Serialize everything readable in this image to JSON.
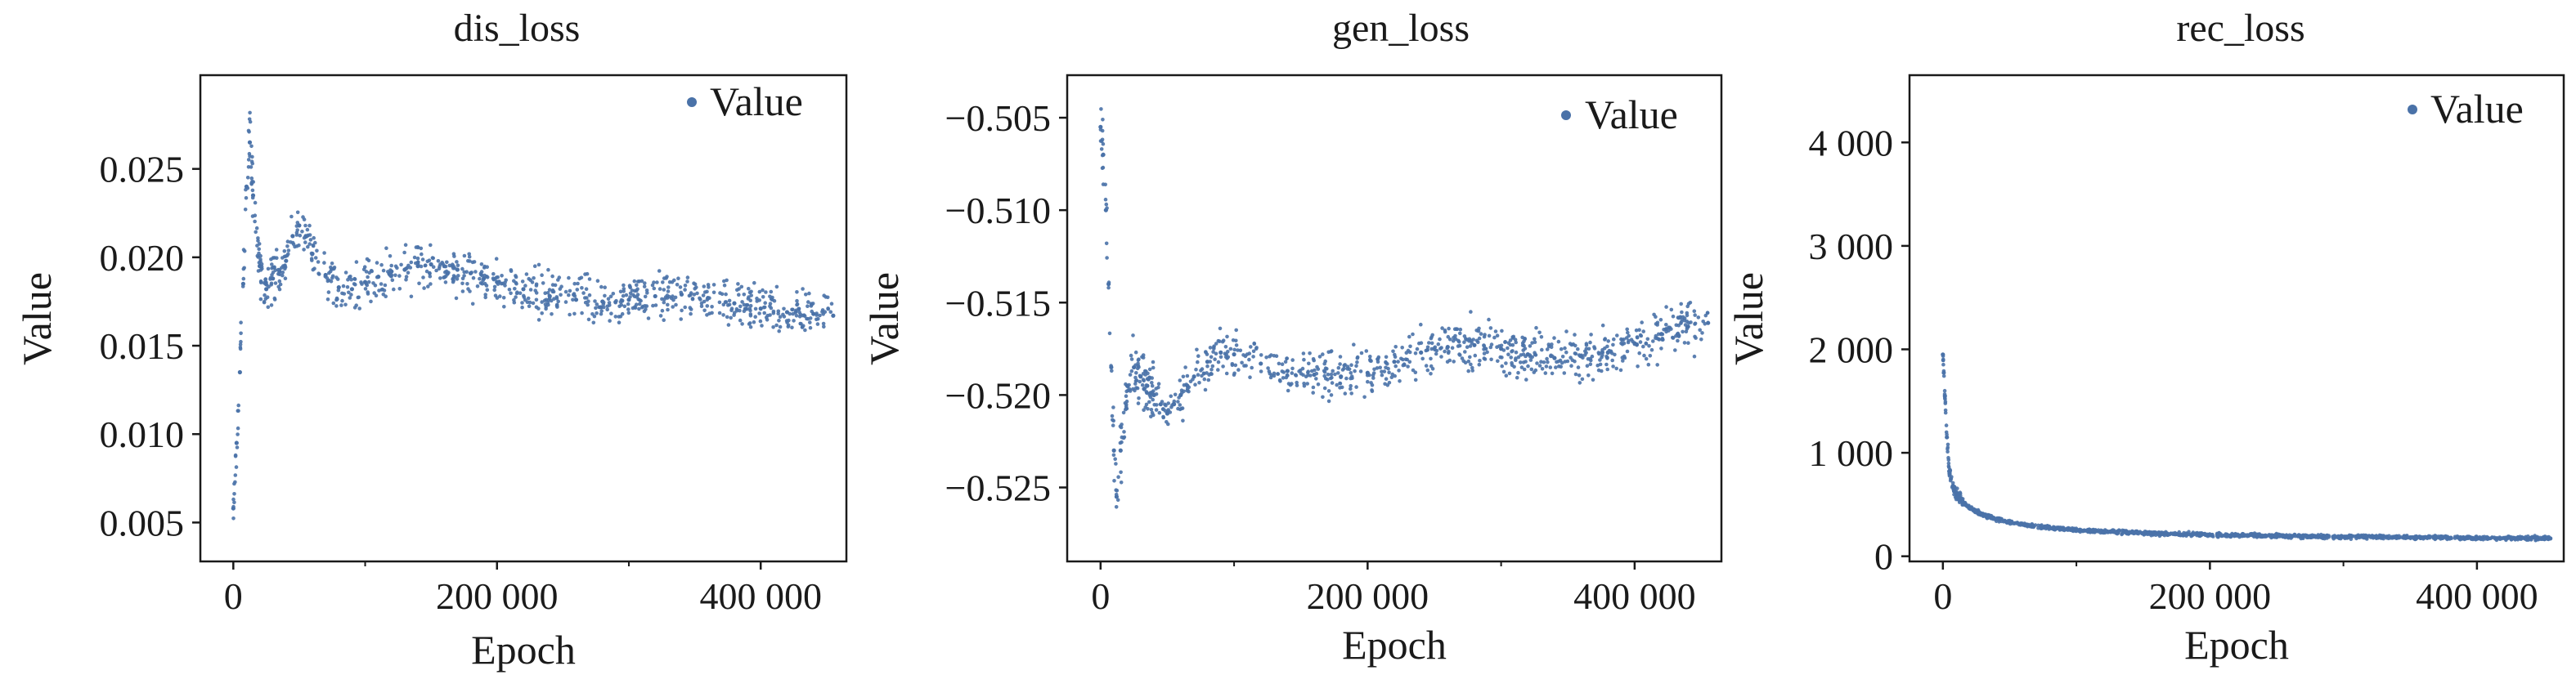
{
  "colors": {
    "point": "#4a72a8",
    "axis": "#1a1a1a",
    "background": "#ffffff"
  },
  "chart_data": [
    {
      "type": "scatter",
      "title": "dis_loss",
      "xlabel": "Epoch",
      "ylabel": "Value",
      "legend": {
        "label": "Value",
        "position": "top-right"
      },
      "xlim": [
        -25000,
        465000
      ],
      "ylim": [
        0.0028,
        0.0303
      ],
      "xticks": [
        0,
        200000,
        400000
      ],
      "xtick_labels": [
        "0",
        "200 000",
        "400 000"
      ],
      "yticks": [
        0.005,
        0.01,
        0.015,
        0.02,
        0.025
      ],
      "ytick_labels": [
        "0.005",
        "0.010",
        "0.015",
        "0.020",
        "0.025"
      ],
      "grid": false,
      "series": [
        {
          "name": "Value",
          "x": [
            0,
            2500,
            5000,
            7500,
            10000,
            12500,
            15000,
            20000,
            25000,
            30000,
            35000,
            40000,
            45000,
            50000,
            55000,
            60000,
            70000,
            80000,
            90000,
            100000,
            110000,
            120000,
            130000,
            140000,
            150000,
            160000,
            170000,
            180000,
            190000,
            200000,
            220000,
            240000,
            260000,
            280000,
            300000,
            320000,
            340000,
            360000,
            380000,
            400000,
            420000,
            440000,
            455000
          ],
          "y": [
            0.0058,
            0.0095,
            0.0135,
            0.0185,
            0.024,
            0.0265,
            0.0235,
            0.0195,
            0.0182,
            0.0188,
            0.0192,
            0.0198,
            0.0212,
            0.0218,
            0.0212,
            0.0202,
            0.019,
            0.0183,
            0.0182,
            0.0186,
            0.0189,
            0.0192,
            0.0193,
            0.0195,
            0.0196,
            0.0195,
            0.0193,
            0.0191,
            0.0188,
            0.0186,
            0.0182,
            0.0178,
            0.0176,
            0.0175,
            0.0176,
            0.0178,
            0.0179,
            0.0177,
            0.0174,
            0.0171,
            0.0169,
            0.0168,
            0.0167
          ]
        }
      ]
    },
    {
      "type": "scatter",
      "title": "gen_loss",
      "xlabel": "Epoch",
      "ylabel": "Value",
      "legend": {
        "label": "Value",
        "position": "top-right"
      },
      "xlim": [
        -25000,
        465000
      ],
      "ylim": [
        -0.529,
        -0.5027
      ],
      "xticks": [
        0,
        200000,
        400000
      ],
      "xtick_labels": [
        "0",
        "200 000",
        "400 000"
      ],
      "yticks": [
        -0.525,
        -0.52,
        -0.515,
        -0.51,
        -0.505
      ],
      "ytick_labels": [
        "−0.525",
        "−0.520",
        "−0.515",
        "−0.510",
        "−0.505"
      ],
      "grid": false,
      "series": [
        {
          "name": "Value",
          "x": [
            0,
            2000,
            4000,
            6000,
            8000,
            10000,
            12000,
            15000,
            20000,
            25000,
            30000,
            35000,
            40000,
            45000,
            50000,
            55000,
            60000,
            65000,
            70000,
            80000,
            90000,
            100000,
            120000,
            140000,
            160000,
            180000,
            200000,
            220000,
            240000,
            260000,
            280000,
            300000,
            320000,
            340000,
            360000,
            380000,
            400000,
            420000,
            440000,
            455000
          ],
          "y": [
            -0.5055,
            -0.507,
            -0.51,
            -0.514,
            -0.5185,
            -0.523,
            -0.5255,
            -0.523,
            -0.5195,
            -0.5185,
            -0.519,
            -0.5195,
            -0.52,
            -0.5205,
            -0.521,
            -0.5205,
            -0.52,
            -0.5195,
            -0.519,
            -0.5182,
            -0.5177,
            -0.5178,
            -0.5183,
            -0.5187,
            -0.5189,
            -0.519,
            -0.5188,
            -0.5182,
            -0.5177,
            -0.5174,
            -0.5173,
            -0.5175,
            -0.5178,
            -0.518,
            -0.5179,
            -0.5177,
            -0.5172,
            -0.5167,
            -0.5163,
            -0.5161
          ]
        }
      ]
    },
    {
      "type": "scatter",
      "title": "rec_loss",
      "xlabel": "Epoch",
      "ylabel": "Value",
      "legend": {
        "label": "Value",
        "position": "top-right"
      },
      "xlim": [
        -25000,
        465000
      ],
      "ylim": [
        -50,
        4650
      ],
      "xticks": [
        0,
        200000,
        400000
      ],
      "xtick_labels": [
        "0",
        "200 000",
        "400 000"
      ],
      "yticks": [
        0,
        1000,
        2000,
        3000,
        4000
      ],
      "ytick_labels": [
        "0",
        "1 000",
        "2 000",
        "3 000",
        "4 000"
      ],
      "grid": false,
      "series": [
        {
          "name": "Value",
          "x": [
            0,
            1500,
            3000,
            5000,
            7500,
            10000,
            15000,
            20000,
            25000,
            30000,
            40000,
            50000,
            60000,
            80000,
            100000,
            125000,
            150000,
            175000,
            200000,
            250000,
            300000,
            350000,
            400000,
            455000
          ],
          "y": [
            1950,
            1550,
            1150,
            800,
            680,
            600,
            520,
            470,
            430,
            400,
            360,
            330,
            305,
            275,
            255,
            238,
            225,
            215,
            207,
            196,
            188,
            182,
            177,
            172
          ]
        }
      ]
    }
  ]
}
